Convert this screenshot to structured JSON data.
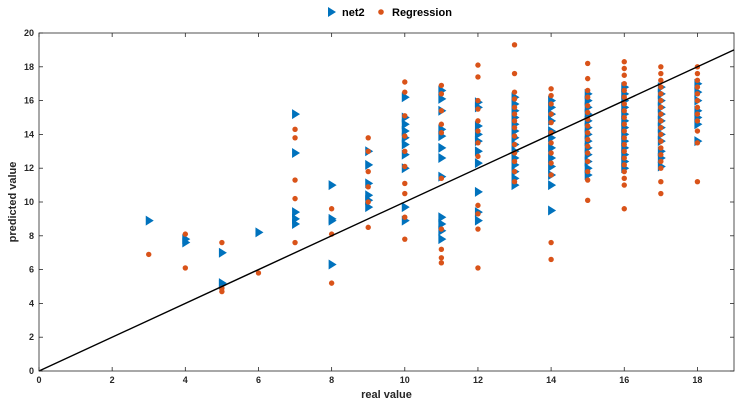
{
  "chart_data": {
    "type": "scatter",
    "title": "",
    "xlabel": "real value",
    "ylabel": "predicted value",
    "xlim": [
      0,
      19
    ],
    "ylim": [
      0,
      20
    ],
    "xticks": [
      0,
      2,
      4,
      6,
      8,
      10,
      12,
      14,
      16,
      18
    ],
    "yticks": [
      0,
      2,
      4,
      6,
      8,
      10,
      12,
      14,
      16,
      18,
      20
    ],
    "grid": false,
    "legend_position": "top-center",
    "series": [
      {
        "name": "net2",
        "marker": "triangle-right",
        "color": "#0072BD",
        "points": [
          [
            3,
            8.9
          ],
          [
            4,
            7.8
          ],
          [
            4,
            7.6
          ],
          [
            5,
            7.0
          ],
          [
            5,
            5.2
          ],
          [
            5,
            5.1
          ],
          [
            6,
            8.2
          ],
          [
            7,
            12.9
          ],
          [
            7,
            9.4
          ],
          [
            7,
            9.0
          ],
          [
            7,
            8.7
          ],
          [
            7,
            15.2
          ],
          [
            8,
            11.0
          ],
          [
            8,
            9.0
          ],
          [
            8,
            8.9
          ],
          [
            8,
            6.3
          ],
          [
            9,
            13.0
          ],
          [
            9,
            12.2
          ],
          [
            9,
            11.1
          ],
          [
            9,
            10.4
          ],
          [
            9,
            10.1
          ],
          [
            9,
            9.7
          ],
          [
            10,
            16.2
          ],
          [
            10,
            15.0
          ],
          [
            10,
            14.6
          ],
          [
            10,
            14.2
          ],
          [
            10,
            13.8
          ],
          [
            10,
            13.4
          ],
          [
            10,
            12.8
          ],
          [
            10,
            12.0
          ],
          [
            10,
            9.7
          ],
          [
            10,
            8.9
          ],
          [
            11,
            16.6
          ],
          [
            11,
            16.1
          ],
          [
            11,
            15.4
          ],
          [
            11,
            14.3
          ],
          [
            11,
            13.9
          ],
          [
            11,
            13.2
          ],
          [
            11,
            12.6
          ],
          [
            11,
            11.5
          ],
          [
            11,
            9.1
          ],
          [
            11,
            8.7
          ],
          [
            11,
            8.3
          ],
          [
            11,
            7.8
          ],
          [
            12,
            15.9
          ],
          [
            12,
            15.6
          ],
          [
            12,
            14.5
          ],
          [
            12,
            14.0
          ],
          [
            12,
            13.6
          ],
          [
            12,
            13.0
          ],
          [
            12,
            12.3
          ],
          [
            12,
            10.6
          ],
          [
            12,
            9.4
          ],
          [
            12,
            8.9
          ],
          [
            13,
            16.2
          ],
          [
            13,
            15.8
          ],
          [
            13,
            15.4
          ],
          [
            13,
            15.0
          ],
          [
            13,
            14.6
          ],
          [
            13,
            14.2
          ],
          [
            13,
            13.8
          ],
          [
            13,
            13.4
          ],
          [
            13,
            13.0
          ],
          [
            13,
            12.6
          ],
          [
            13,
            12.2
          ],
          [
            13,
            11.8
          ],
          [
            13,
            11.4
          ],
          [
            13,
            11.0
          ],
          [
            14,
            16.0
          ],
          [
            14,
            15.6
          ],
          [
            14,
            15.2
          ],
          [
            14,
            14.8
          ],
          [
            14,
            14.2
          ],
          [
            14,
            13.8
          ],
          [
            14,
            13.2
          ],
          [
            14,
            12.6
          ],
          [
            14,
            12.1
          ],
          [
            14,
            11.6
          ],
          [
            14,
            11.0
          ],
          [
            14,
            9.5
          ],
          [
            15,
            16.4
          ],
          [
            15,
            16.0
          ],
          [
            15,
            15.6
          ],
          [
            15,
            15.2
          ],
          [
            15,
            14.8
          ],
          [
            15,
            14.4
          ],
          [
            15,
            14.0
          ],
          [
            15,
            13.6
          ],
          [
            15,
            13.2
          ],
          [
            15,
            12.8
          ],
          [
            15,
            12.4
          ],
          [
            15,
            12.0
          ],
          [
            15,
            11.6
          ],
          [
            16,
            16.8
          ],
          [
            16,
            16.4
          ],
          [
            16,
            16.0
          ],
          [
            16,
            15.6
          ],
          [
            16,
            15.2
          ],
          [
            16,
            14.8
          ],
          [
            16,
            14.4
          ],
          [
            16,
            14.0
          ],
          [
            16,
            13.6
          ],
          [
            16,
            13.2
          ],
          [
            16,
            12.8
          ],
          [
            16,
            12.4
          ],
          [
            16,
            12.0
          ],
          [
            17,
            16.8
          ],
          [
            17,
            16.4
          ],
          [
            17,
            16.0
          ],
          [
            17,
            15.6
          ],
          [
            17,
            15.2
          ],
          [
            17,
            14.8
          ],
          [
            17,
            14.4
          ],
          [
            17,
            14.0
          ],
          [
            17,
            13.6
          ],
          [
            17,
            13.0
          ],
          [
            17,
            12.6
          ],
          [
            17,
            12.1
          ],
          [
            18,
            17.0
          ],
          [
            18,
            16.5
          ],
          [
            18,
            16.0
          ],
          [
            18,
            15.4
          ],
          [
            18,
            15.0
          ],
          [
            18,
            14.6
          ],
          [
            18,
            13.6
          ]
        ]
      },
      {
        "name": "Regression",
        "marker": "circle",
        "color": "#D95319",
        "points": [
          [
            3,
            6.9
          ],
          [
            4,
            8.1
          ],
          [
            4,
            6.1
          ],
          [
            5,
            7.6
          ],
          [
            5,
            4.9
          ],
          [
            5,
            4.7
          ],
          [
            6,
            5.8
          ],
          [
            7,
            14.3
          ],
          [
            7,
            13.8
          ],
          [
            7,
            11.3
          ],
          [
            7,
            10.2
          ],
          [
            7,
            7.6
          ],
          [
            8,
            9.6
          ],
          [
            8,
            8.1
          ],
          [
            8,
            5.2
          ],
          [
            9,
            13.8
          ],
          [
            9,
            13.0
          ],
          [
            9,
            11.8
          ],
          [
            9,
            10.9
          ],
          [
            9,
            10.0
          ],
          [
            9,
            8.5
          ],
          [
            10,
            17.1
          ],
          [
            10,
            16.5
          ],
          [
            10,
            15.1
          ],
          [
            10,
            13.9
          ],
          [
            10,
            13.0
          ],
          [
            10,
            12.1
          ],
          [
            10,
            11.1
          ],
          [
            10,
            10.5
          ],
          [
            10,
            9.1
          ],
          [
            10,
            7.8
          ],
          [
            11,
            16.9
          ],
          [
            11,
            16.4
          ],
          [
            11,
            15.4
          ],
          [
            11,
            14.6
          ],
          [
            11,
            14.1
          ],
          [
            11,
            11.4
          ],
          [
            11,
            8.4
          ],
          [
            11,
            7.2
          ],
          [
            11,
            6.7
          ],
          [
            11,
            6.4
          ],
          [
            12,
            18.1
          ],
          [
            12,
            17.4
          ],
          [
            12,
            16.0
          ],
          [
            12,
            15.5
          ],
          [
            12,
            14.8
          ],
          [
            12,
            14.2
          ],
          [
            12,
            13.5
          ],
          [
            12,
            12.7
          ],
          [
            12,
            9.8
          ],
          [
            12,
            9.3
          ],
          [
            12,
            8.4
          ],
          [
            12,
            6.1
          ],
          [
            13,
            19.3
          ],
          [
            13,
            17.6
          ],
          [
            13,
            16.5
          ],
          [
            13,
            16.1
          ],
          [
            13,
            15.6
          ],
          [
            13,
            15.2
          ],
          [
            13,
            14.8
          ],
          [
            13,
            14.4
          ],
          [
            13,
            13.9
          ],
          [
            13,
            13.4
          ],
          [
            13,
            12.9
          ],
          [
            13,
            12.4
          ],
          [
            13,
            11.8
          ],
          [
            13,
            11.2
          ],
          [
            14,
            16.7
          ],
          [
            14,
            16.3
          ],
          [
            14,
            15.8
          ],
          [
            14,
            15.2
          ],
          [
            14,
            14.7
          ],
          [
            14,
            14.1
          ],
          [
            14,
            13.5
          ],
          [
            14,
            12.9
          ],
          [
            14,
            12.3
          ],
          [
            14,
            11.6
          ],
          [
            14,
            7.6
          ],
          [
            14,
            6.6
          ],
          [
            15,
            18.2
          ],
          [
            15,
            17.3
          ],
          [
            15,
            16.6
          ],
          [
            15,
            16.2
          ],
          [
            15,
            15.7
          ],
          [
            15,
            15.3
          ],
          [
            15,
            14.9
          ],
          [
            15,
            14.5
          ],
          [
            15,
            14.1
          ],
          [
            15,
            13.7
          ],
          [
            15,
            13.3
          ],
          [
            15,
            12.9
          ],
          [
            15,
            12.4
          ],
          [
            15,
            11.8
          ],
          [
            15,
            11.3
          ],
          [
            15,
            10.1
          ],
          [
            16,
            18.3
          ],
          [
            16,
            17.9
          ],
          [
            16,
            17.5
          ],
          [
            16,
            17.0
          ],
          [
            16,
            16.6
          ],
          [
            16,
            16.2
          ],
          [
            16,
            15.8
          ],
          [
            16,
            15.4
          ],
          [
            16,
            15.0
          ],
          [
            16,
            14.6
          ],
          [
            16,
            14.2
          ],
          [
            16,
            13.8
          ],
          [
            16,
            13.4
          ],
          [
            16,
            13.0
          ],
          [
            16,
            12.6
          ],
          [
            16,
            12.2
          ],
          [
            16,
            11.8
          ],
          [
            16,
            11.4
          ],
          [
            16,
            11.0
          ],
          [
            16,
            9.6
          ],
          [
            17,
            18.0
          ],
          [
            17,
            17.6
          ],
          [
            17,
            17.2
          ],
          [
            17,
            16.8
          ],
          [
            17,
            16.4
          ],
          [
            17,
            16.0
          ],
          [
            17,
            15.6
          ],
          [
            17,
            15.2
          ],
          [
            17,
            14.8
          ],
          [
            17,
            14.4
          ],
          [
            17,
            14.0
          ],
          [
            17,
            13.6
          ],
          [
            17,
            13.2
          ],
          [
            17,
            12.8
          ],
          [
            17,
            12.4
          ],
          [
            17,
            12.0
          ],
          [
            17,
            11.2
          ],
          [
            17,
            10.5
          ],
          [
            18,
            18.0
          ],
          [
            18,
            17.6
          ],
          [
            18,
            17.2
          ],
          [
            18,
            16.8
          ],
          [
            18,
            16.4
          ],
          [
            18,
            16.0
          ],
          [
            18,
            15.6
          ],
          [
            18,
            15.2
          ],
          [
            18,
            14.8
          ],
          [
            18,
            14.2
          ],
          [
            18,
            13.5
          ],
          [
            18,
            11.2
          ]
        ]
      }
    ],
    "reference_line": {
      "from": [
        0,
        0
      ],
      "to": [
        19,
        19
      ],
      "color": "#000000"
    }
  }
}
